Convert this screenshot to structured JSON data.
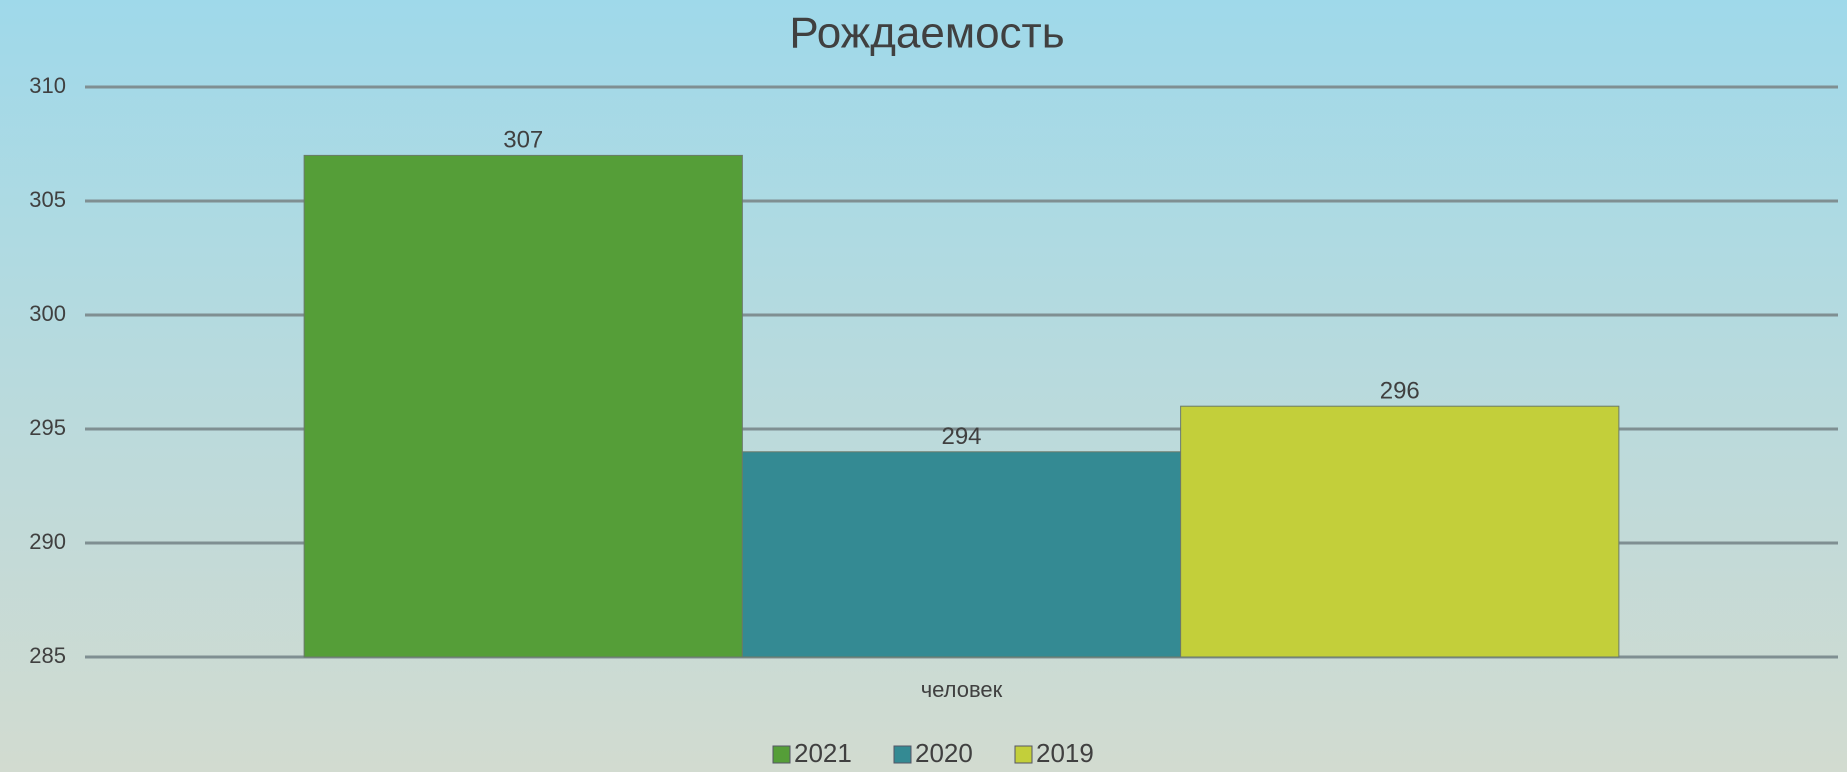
{
  "chart_data": {
    "type": "bar",
    "title": "Рождаемость",
    "categories": [
      "человек"
    ],
    "series": [
      {
        "name": "2021",
        "color": "#559e38",
        "values": [
          307
        ]
      },
      {
        "name": "2020",
        "color": "#348a93",
        "values": [
          294
        ]
      },
      {
        "name": "2019",
        "color": "#c3cf3a",
        "values": [
          296
        ]
      }
    ],
    "ylim": [
      285,
      310
    ],
    "yticks": [
      285,
      290,
      295,
      300,
      305,
      310
    ],
    "grid": true,
    "legend": "bottom"
  }
}
